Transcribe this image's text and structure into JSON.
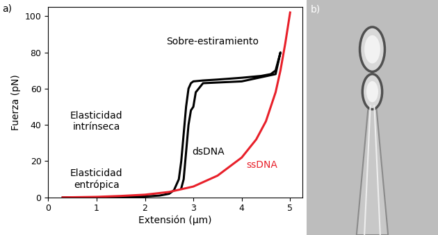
{
  "chart_data": {
    "type": "line",
    "panel_label": "a)",
    "x_label": "Extensión (μm)",
    "y_label": "Fuerza (pN)",
    "xlim": [
      0,
      5.25
    ],
    "ylim": [
      0,
      105
    ],
    "xticks": [
      0,
      1,
      2,
      3,
      4,
      5
    ],
    "yticks": [
      0,
      20,
      40,
      60,
      80,
      100
    ],
    "grid": false,
    "annotations": [
      "Sobre-estiramiento",
      "Elasticidad\nintrínseca",
      "Elasticidad\nentrópica"
    ],
    "series": [
      {
        "name": "dsDNA",
        "color": "#000000",
        "line_style": "solid",
        "x": [
          0.3,
          1.0,
          1.5,
          2.0,
          2.3,
          2.5,
          2.6,
          2.7,
          2.75,
          2.8,
          2.85,
          2.9,
          2.95,
          3.0,
          3.2,
          3.5,
          4.0,
          4.4,
          4.6,
          4.7,
          4.75,
          4.8,
          4.7,
          4.0,
          3.2,
          3.05,
          3.0,
          2.95,
          2.9,
          2.85,
          2.8,
          2.75
        ],
        "values": [
          0,
          0,
          0.2,
          0.5,
          1,
          2,
          4,
          10,
          20,
          35,
          50,
          60,
          63,
          64,
          64.5,
          65,
          66,
          67,
          68,
          70,
          75,
          80,
          68,
          64,
          63,
          58,
          50,
          48,
          40,
          25,
          10,
          5
        ]
      },
      {
        "name": "ssDNA",
        "color": "#e8202a",
        "line_style": "solid",
        "x": [
          0.3,
          1.0,
          1.5,
          2.0,
          2.5,
          3.0,
          3.5,
          4.0,
          4.3,
          4.5,
          4.7,
          4.8,
          4.9,
          5.0
        ],
        "values": [
          0,
          0.3,
          0.8,
          1.5,
          3,
          6,
          12,
          22,
          32,
          42,
          58,
          70,
          85,
          102
        ]
      }
    ]
  },
  "image": {
    "panel_label": "b)"
  }
}
